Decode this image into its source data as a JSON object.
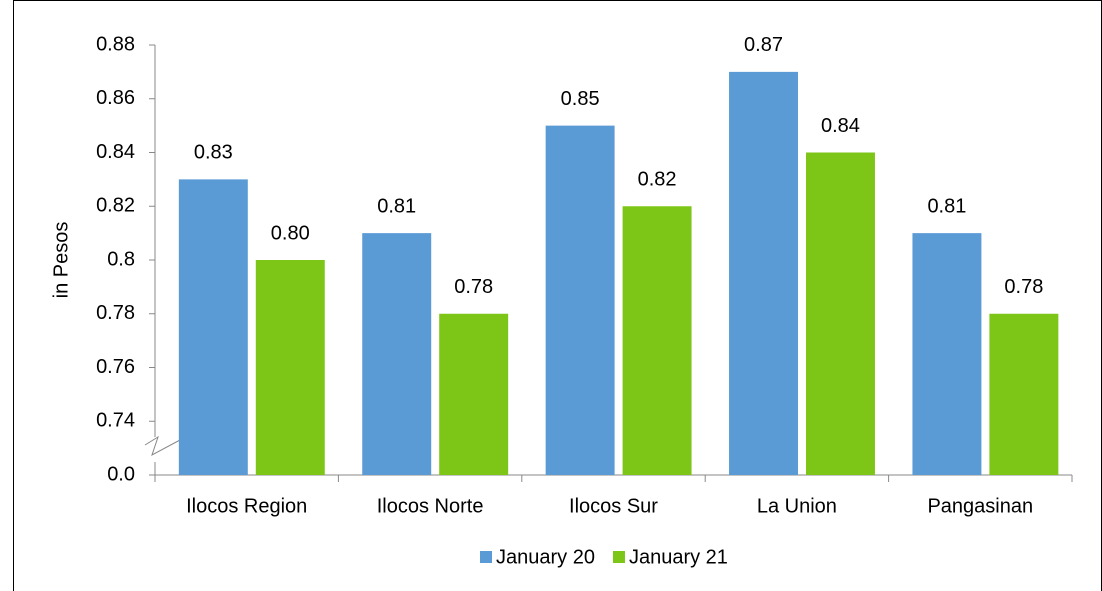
{
  "chart_data": {
    "type": "bar",
    "y_label": "in Pesos",
    "categories": [
      "Ilocos Region",
      "Ilocos Norte",
      "Ilocos Sur",
      "La Union",
      "Pangasinan"
    ],
    "series": [
      {
        "name": "January 20",
        "color": "#5b9bd5",
        "values": [
          0.83,
          0.81,
          0.85,
          0.87,
          0.81
        ],
        "value_labels": [
          "0.83",
          "0.81",
          "0.85",
          "0.87",
          "0.81"
        ]
      },
      {
        "name": "January 21",
        "color": "#7dc617",
        "values": [
          0.8,
          0.78,
          0.82,
          0.84,
          0.78
        ],
        "value_labels": [
          "0.80",
          "0.78",
          "0.82",
          "0.84",
          "0.78"
        ]
      }
    ],
    "ylim": [
      0.72,
      0.88
    ],
    "yticks": [
      0.74,
      0.76,
      0.78,
      0.8,
      0.82,
      0.84,
      0.86,
      0.88
    ],
    "y_break_label": "0.0",
    "legend": "bottom"
  }
}
